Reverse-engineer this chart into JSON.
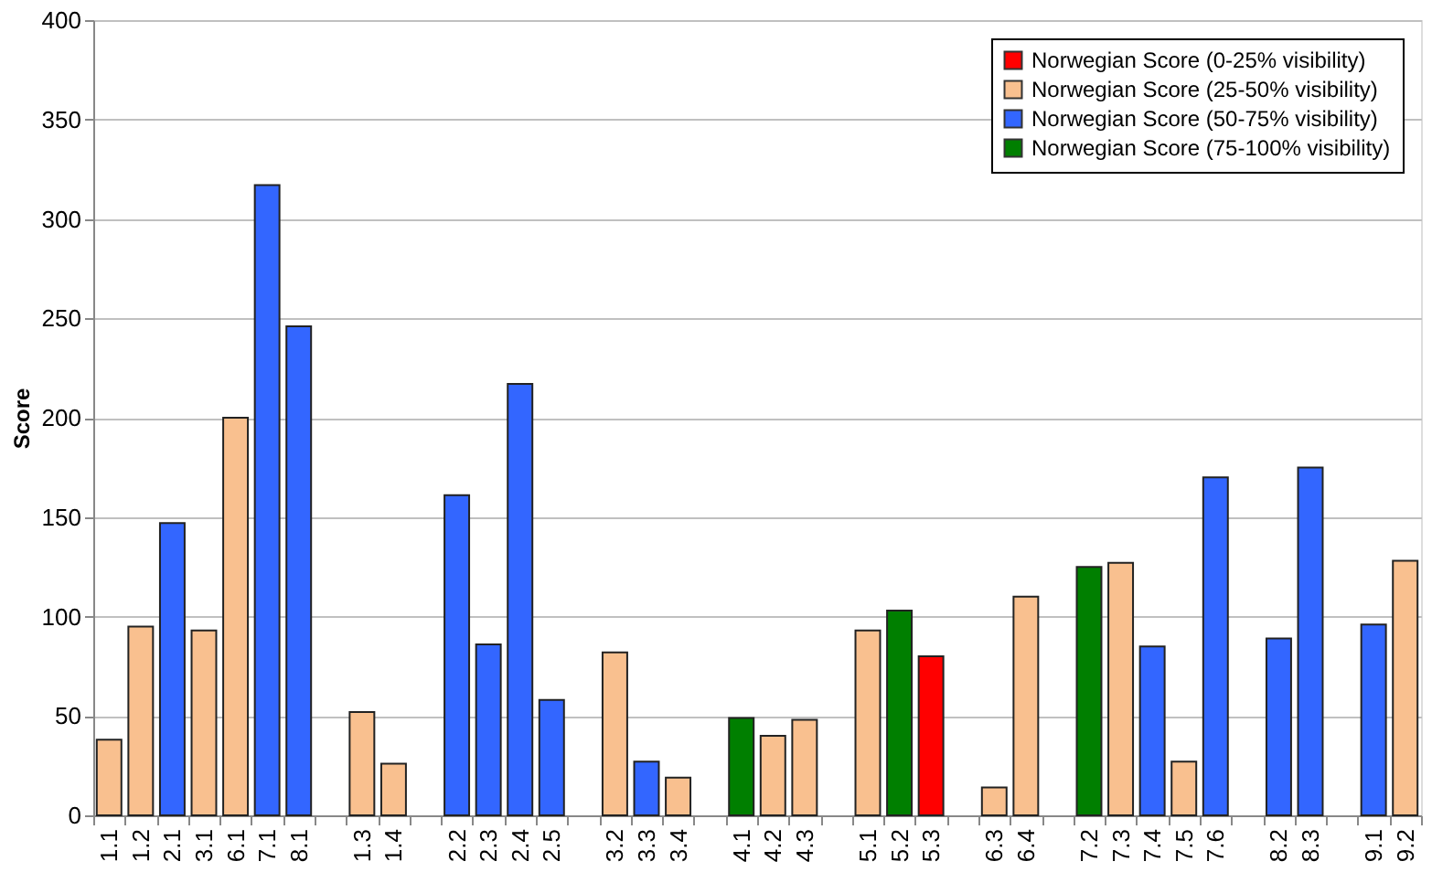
{
  "chart_data": {
    "type": "bar",
    "ylabel": "Score",
    "grid": "y",
    "legend": "top right",
    "categories": [
      "1.1",
      "1.2",
      "2.1",
      "3.1",
      "6.1",
      "7.1",
      "8.1",
      null,
      "1.3",
      "1.4",
      null,
      "2.2",
      "2.3",
      "2.4",
      "2.5",
      null,
      "3.2",
      "3.3",
      "3.4",
      null,
      "4.1",
      "4.2",
      "4.3",
      null,
      "5.1",
      "5.2",
      "5.3",
      null,
      "6.3",
      "6.4",
      null,
      "7.2",
      "7.3",
      "7.4",
      "7.5",
      "7.6",
      null,
      "8.2",
      "8.3",
      null,
      "9.1",
      "9.2"
    ],
    "ylim": [
      0,
      400
    ],
    "yticks": [
      0,
      50,
      100,
      150,
      200,
      250,
      300,
      350,
      400
    ],
    "series": [
      {
        "name": "Norwegian Score (0-25% visibility)",
        "color": "#ff0000",
        "values": [
          null,
          null,
          null,
          null,
          null,
          null,
          null,
          null,
          null,
          null,
          null,
          null,
          null,
          null,
          null,
          null,
          null,
          null,
          null,
          null,
          null,
          null,
          null,
          null,
          null,
          null,
          80,
          null,
          null,
          null,
          null,
          null,
          null,
          null,
          null,
          null,
          null,
          null,
          null,
          null,
          null,
          null
        ]
      },
      {
        "name": "Norwegian Score (25-50% visibility)",
        "color": "#f9c08f",
        "values": [
          38,
          95,
          null,
          93,
          200,
          null,
          null,
          null,
          52,
          26,
          null,
          null,
          null,
          null,
          null,
          null,
          82,
          null,
          19,
          null,
          null,
          40,
          48,
          null,
          93,
          null,
          null,
          null,
          14,
          110,
          null,
          null,
          127,
          null,
          27,
          null,
          null,
          null,
          null,
          null,
          null,
          128
        ]
      },
      {
        "name": "Norwegian Score (50-75% visibility)",
        "color": "#3366ff",
        "values": [
          null,
          null,
          147,
          null,
          null,
          317,
          246,
          null,
          null,
          null,
          null,
          161,
          86,
          217,
          58,
          null,
          null,
          27,
          null,
          null,
          null,
          null,
          null,
          null,
          null,
          null,
          null,
          null,
          null,
          null,
          null,
          null,
          null,
          85,
          null,
          170,
          null,
          89,
          175,
          null,
          96,
          null
        ]
      },
      {
        "name": "Norwegian Score (75-100% visibility)",
        "color": "#007f00",
        "values": [
          null,
          null,
          null,
          null,
          null,
          null,
          null,
          null,
          null,
          null,
          null,
          null,
          null,
          null,
          null,
          null,
          null,
          null,
          null,
          null,
          49,
          null,
          null,
          null,
          null,
          103,
          null,
          null,
          null,
          null,
          null,
          125,
          null,
          null,
          null,
          null,
          null,
          null,
          null,
          null,
          null,
          null
        ]
      }
    ]
  }
}
